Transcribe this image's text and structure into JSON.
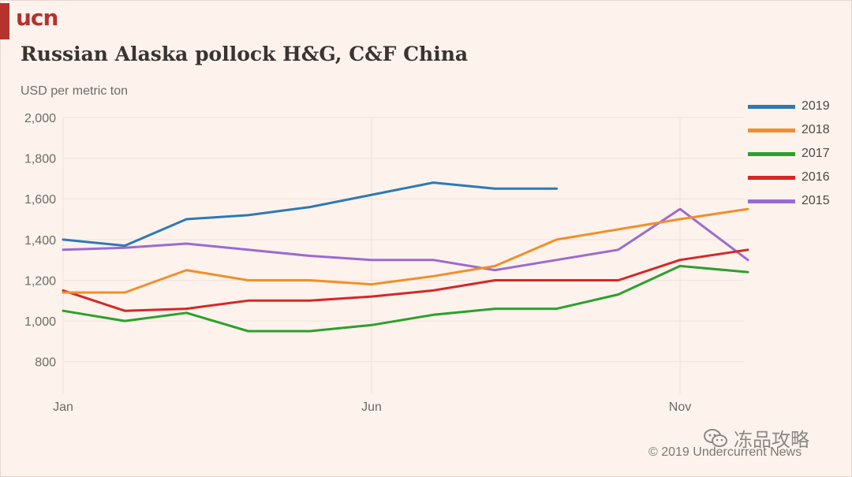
{
  "brand": {
    "logo_text": "ucn",
    "color": "#b5322f"
  },
  "chart_data": {
    "type": "line",
    "title": "Russian Alaska pollock H&G, C&F China",
    "ylabel": "USD per metric ton",
    "xlabel": "",
    "ylim": [
      640,
      2000
    ],
    "yticks": [
      800,
      1000,
      1200,
      1400,
      1600,
      1800,
      2000
    ],
    "ytick_labels": [
      "800",
      "1,000",
      "1,200",
      "1,400",
      "1,600",
      "1,800",
      "2,000"
    ],
    "x_tick_labels": [
      {
        "label": "Jan",
        "month": 1
      },
      {
        "label": "Jun",
        "month": 6
      },
      {
        "label": "Nov",
        "month": 11
      }
    ],
    "xlim": [
      1,
      12.1
    ],
    "grid": true,
    "legend_position": "right",
    "series": [
      {
        "name": "2019",
        "color": "#2e79b5",
        "x": [
          1,
          2,
          3,
          4,
          5,
          6,
          7,
          8,
          9
        ],
        "values": [
          1400,
          1370,
          1500,
          1520,
          1560,
          1620,
          1680,
          1650,
          1650
        ]
      },
      {
        "name": "2018",
        "color": "#f28e2b",
        "x": [
          1,
          2,
          3,
          4,
          5,
          6,
          7,
          8,
          9,
          10,
          11,
          12.1
        ],
        "values": [
          1140,
          1140,
          1250,
          1200,
          1200,
          1180,
          1220,
          1270,
          1400,
          1450,
          1500,
          1550
        ]
      },
      {
        "name": "2017",
        "color": "#2ca02c",
        "x": [
          1,
          2,
          3,
          4,
          5,
          6,
          7,
          8,
          9,
          10,
          11,
          12.1
        ],
        "values": [
          1050,
          1000,
          1040,
          950,
          950,
          980,
          1030,
          1060,
          1060,
          1130,
          1270,
          1240
        ]
      },
      {
        "name": "2016",
        "color": "#d62728",
        "x": [
          1,
          2,
          3,
          4,
          5,
          6,
          7,
          8,
          9,
          10,
          11,
          12.1
        ],
        "values": [
          1150,
          1050,
          1060,
          1100,
          1100,
          1120,
          1150,
          1200,
          1200,
          1200,
          1300,
          1350
        ]
      },
      {
        "name": "2015",
        "color": "#9c6ad1",
        "x": [
          1,
          2,
          3,
          4,
          5,
          6,
          7,
          8,
          9,
          10,
          11,
          12.1
        ],
        "values": [
          1350,
          1360,
          1380,
          1350,
          1320,
          1300,
          1300,
          1250,
          1300,
          1350,
          1550,
          1300
        ]
      }
    ]
  },
  "watermark": {
    "text": "冻品攻略",
    "icon": "wechat-icon"
  },
  "copyright": "© 2019 Undercurrent News"
}
